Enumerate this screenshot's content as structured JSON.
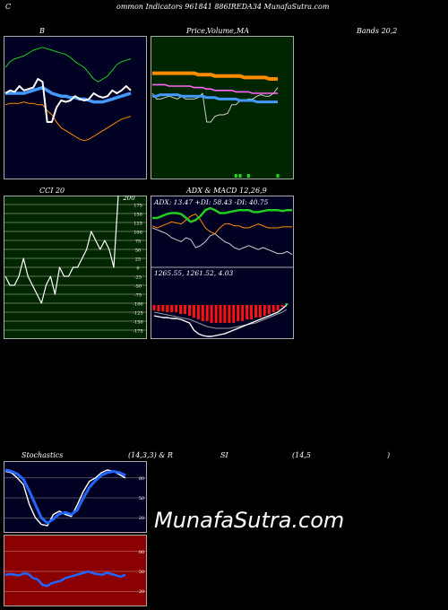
{
  "header": {
    "c_label": "C",
    "title": "ommon  Indicators 961841 886IREDA34  MunafaSutra.com"
  },
  "labels": {
    "b": "B",
    "price": "Price,",
    "volume": "Volume,",
    "ma": "MA",
    "bands": "Bands 20,2",
    "cci": "CCI 20",
    "adx_macd": "ADX  & MACD 12,26,9",
    "adx_info": "ADX: 13.47 +DI: 58.43 -DI: 40.75",
    "macd_info": "1265.55,  1261.52,  4.03",
    "stoch": "Stochastics",
    "stoch_params": "(14,3,3) & R",
    "si": "SI",
    "rsi_params": "(14,5",
    "paren": ")",
    "watermark": "MunafaSutra.com"
  },
  "colors": {
    "navy": "#000022",
    "green_bg": "#002600",
    "red_bg": "#8b0000",
    "blue_line": "#1e78ff",
    "orange": "#ff8c00",
    "greenline": "#22cc22"
  },
  "chart_data": [
    {
      "type": "line",
      "name": "bollinger",
      "series": [
        {
          "name": "price",
          "values": [
            40,
            38,
            39,
            35,
            38,
            37,
            36,
            30,
            32,
            60,
            60,
            50,
            45,
            46,
            45,
            42,
            44,
            45,
            44,
            40,
            42,
            43,
            42,
            38,
            40,
            38,
            35,
            38
          ]
        },
        {
          "name": "upper",
          "values": [
            22,
            18,
            16,
            15,
            14,
            12,
            10,
            9,
            8,
            9,
            10,
            11,
            12,
            13,
            15,
            18,
            20,
            22,
            26,
            30,
            32,
            30,
            28,
            24,
            20,
            18,
            17,
            16
          ]
        },
        {
          "name": "middle",
          "values": [
            40,
            40,
            40,
            40,
            40,
            39,
            38,
            37,
            36,
            38,
            40,
            41,
            42,
            42,
            43,
            43,
            44,
            44,
            45,
            46,
            46,
            46,
            45,
            44,
            43,
            42,
            41,
            40
          ]
        },
        {
          "name": "lower",
          "values": [
            48,
            47,
            47,
            47,
            46,
            47,
            47,
            48,
            48,
            52,
            55,
            60,
            64,
            66,
            68,
            70,
            72,
            73,
            72,
            70,
            68,
            66,
            64,
            62,
            60,
            58,
            57,
            56
          ]
        }
      ]
    },
    {
      "type": "line",
      "name": "price_ma_volume",
      "series": [
        {
          "name": "close",
          "values": [
            40,
            44,
            44,
            43,
            42,
            43,
            44,
            42,
            44,
            44,
            44,
            43,
            40,
            60,
            60,
            56,
            55,
            55,
            54,
            48,
            48,
            45,
            45,
            44,
            44,
            42,
            41,
            42,
            42,
            40,
            36
          ]
        },
        {
          "name": "ma_long",
          "values": [
            26,
            26,
            26,
            26,
            26,
            26,
            26,
            26,
            26,
            26,
            26,
            27,
            27,
            27,
            27,
            28,
            28,
            28,
            28,
            28,
            28,
            28,
            29,
            29,
            29,
            29,
            29,
            29,
            30,
            30,
            30
          ]
        },
        {
          "name": "ma_blue",
          "values": [
            42,
            42,
            41,
            41,
            41,
            41,
            41,
            42,
            42,
            42,
            42,
            42,
            42,
            43,
            43,
            43,
            44,
            44,
            44,
            44,
            44,
            45,
            45,
            45,
            45,
            46,
            46,
            46,
            46,
            46,
            46
          ]
        },
        {
          "name": "ma_pink",
          "values": [
            34,
            34,
            34,
            34,
            35,
            35,
            35,
            35,
            35,
            35,
            36,
            36,
            36,
            37,
            37,
            38,
            38,
            38,
            38,
            38,
            39,
            39,
            39,
            39,
            40,
            40,
            40,
            40,
            40,
            40,
            40
          ]
        }
      ],
      "volume": [
        0,
        0,
        0,
        0,
        0,
        0,
        0,
        0,
        0,
        0,
        0,
        0,
        0,
        0,
        0,
        0,
        0,
        0,
        0,
        0,
        1,
        1,
        0,
        1,
        0,
        0,
        0,
        0,
        0,
        0,
        1
      ]
    },
    {
      "type": "line",
      "name": "cci",
      "ticks": [
        175,
        150,
        125,
        100,
        75,
        50,
        25,
        0,
        -25,
        -50,
        -75,
        -100,
        -125,
        -150,
        -175
      ],
      "peak_label": "200",
      "ylim": [
        -200,
        200
      ],
      "values": [
        -25,
        -50,
        -50,
        -25,
        25,
        -25,
        -50,
        -75,
        -100,
        -50,
        -25,
        -75,
        0,
        -25,
        -25,
        0,
        0,
        25,
        50,
        100,
        75,
        50,
        75,
        50,
        0,
        200
      ]
    },
    {
      "type": "line",
      "name": "adx",
      "series": [
        {
          "name": "adx",
          "values": [
            40,
            38,
            36,
            34,
            30,
            28,
            26,
            30,
            28,
            20,
            22,
            26,
            32,
            34,
            30,
            26,
            24,
            20,
            18,
            20,
            22,
            20,
            18,
            20,
            18,
            16,
            14,
            14,
            16,
            13
          ]
        },
        {
          "name": "plus_di",
          "values": [
            50,
            50,
            52,
            54,
            55,
            55,
            54,
            50,
            46,
            48,
            52,
            58,
            60,
            58,
            55,
            55,
            56,
            57,
            58,
            58,
            58,
            56,
            56,
            57,
            58,
            58,
            58,
            57,
            58,
            58
          ]
        },
        {
          "name": "minus_di",
          "values": [
            42,
            40,
            42,
            44,
            46,
            45,
            44,
            48,
            52,
            54,
            48,
            40,
            36,
            34,
            40,
            44,
            44,
            42,
            42,
            40,
            40,
            42,
            44,
            42,
            40,
            40,
            40,
            41,
            41,
            41
          ]
        }
      ]
    },
    {
      "type": "bar",
      "name": "macd",
      "histogram": [
        -6,
        -7,
        -7,
        -8,
        -8,
        -8,
        -10,
        -10,
        -12,
        -14,
        -16,
        -18,
        -18,
        -20,
        -20,
        -20,
        -20,
        -20,
        -20,
        -18,
        -18,
        -16,
        -16,
        -14,
        -14,
        -12,
        -10,
        -8,
        -6,
        -2,
        2
      ],
      "series": [
        {
          "name": "macd",
          "values": [
            -12,
            -13,
            -14,
            -14,
            -15,
            -15,
            -16,
            -18,
            -20,
            -28,
            -32,
            -34,
            -35,
            -35,
            -34,
            -33,
            -32,
            -30,
            -28,
            -26,
            -24,
            -22,
            -20,
            -18,
            -16,
            -14,
            -12,
            -10,
            -8,
            -4,
            0
          ]
        },
        {
          "name": "signal",
          "values": [
            -8,
            -9,
            -10,
            -11,
            -12,
            -13,
            -14,
            -15,
            -16,
            -18,
            -20,
            -22,
            -24,
            -25,
            -26,
            -26,
            -26,
            -26,
            -25,
            -24,
            -23,
            -22,
            -21,
            -20,
            -18,
            -16,
            -14,
            -12,
            -10,
            -8,
            -5
          ]
        }
      ]
    },
    {
      "type": "line",
      "name": "stochastics",
      "ticks": [
        80,
        50,
        20
      ],
      "ylim": [
        0,
        100
      ],
      "series": [
        {
          "name": "k",
          "values": [
            90,
            88,
            80,
            70,
            40,
            20,
            10,
            8,
            25,
            30,
            25,
            22,
            40,
            60,
            75,
            80,
            88,
            92,
            90,
            85,
            80
          ]
        },
        {
          "name": "d",
          "values": [
            92,
            90,
            86,
            78,
            60,
            40,
            20,
            12,
            18,
            26,
            28,
            25,
            32,
            50,
            66,
            76,
            84,
            88,
            90,
            88,
            84
          ]
        }
      ]
    },
    {
      "type": "line",
      "name": "rsi",
      "ticks": [
        80,
        50,
        20
      ],
      "ylim": [
        0,
        100
      ],
      "values": [
        45,
        46,
        45,
        44,
        47,
        46,
        40,
        38,
        30,
        28,
        32,
        34,
        36,
        40,
        42,
        44,
        46,
        48,
        50,
        47,
        46,
        45,
        48,
        46,
        44,
        42,
        45
      ]
    }
  ]
}
